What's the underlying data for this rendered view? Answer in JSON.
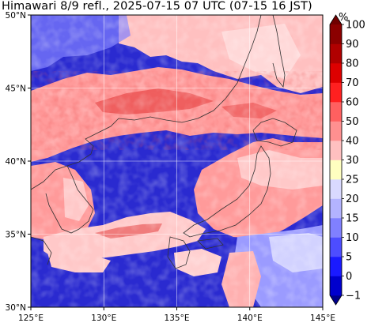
{
  "title": "Himawari 8/9 refl., 2025-07-15 07 UTC (07-15 16 JST)",
  "lat_ticks": [
    "50°N",
    "45°N",
    "40°N",
    "35°N",
    "30°N"
  ],
  "lon_ticks": [
    "125°E",
    "130°E",
    "135°E",
    "140°E",
    "145°E"
  ],
  "colorbar": {
    "unit": "%",
    "levels": [
      "−1",
      "0",
      "5",
      "10",
      "15",
      "20",
      "25",
      "30",
      "40",
      "50",
      "60",
      "70",
      "80",
      "90",
      "100"
    ],
    "colors": [
      "#00008b",
      "#0000cd",
      "#1a1aff",
      "#4d4dff",
      "#8080ff",
      "#b3b3ff",
      "#d9d9ff",
      "#ffffc0",
      "#ffc0c0",
      "#ff9090",
      "#ff6060",
      "#ff2020",
      "#dd0000",
      "#b00000",
      "#8b0000",
      "#700000"
    ]
  },
  "map": {
    "extent": {
      "lon": [
        125,
        145
      ],
      "lat": [
        30,
        50
      ]
    },
    "background_color": "#2a2ad0",
    "colors": {
      "cloud_pink": "#ff9a9a",
      "cloud_light": "#ffc8c8",
      "cloud_red": "#e23030",
      "clear_blue": "#2a2ad0",
      "mid_blue": "#7070ff",
      "pale": "#e8e8ff"
    }
  }
}
